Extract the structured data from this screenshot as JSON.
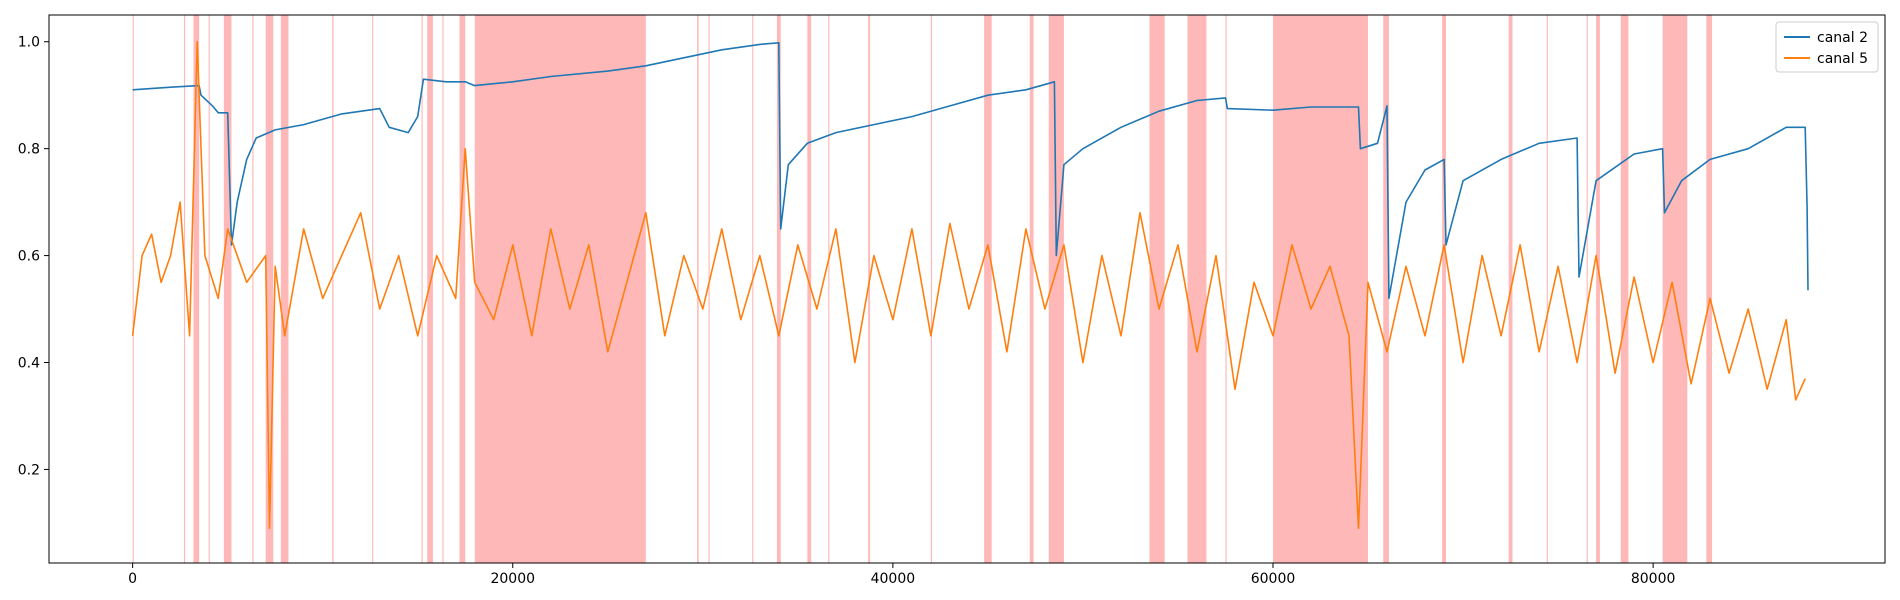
{
  "chart_data": {
    "type": "line",
    "title": "",
    "xlabel": "",
    "ylabel": "",
    "xlim": [
      -4400,
      92200
    ],
    "ylim": [
      0.025,
      1.05
    ],
    "x_ticks": [
      0,
      20000,
      40000,
      60000,
      80000
    ],
    "x_tick_labels": [
      "0",
      "20000",
      "40000",
      "60000",
      "80000"
    ],
    "y_ticks": [
      0.2,
      0.4,
      0.6,
      0.8,
      1.0
    ],
    "y_tick_labels": [
      "0.2",
      "0.4",
      "0.6",
      "0.8",
      "1.0"
    ],
    "grid": false,
    "legend": {
      "placement": "top-right",
      "entries": [
        "canal 2",
        "canal 5"
      ]
    },
    "series": [
      {
        "name": "canal 2",
        "color": "#1f77b4",
        "points": [
          [
            0,
            0.91
          ],
          [
            2000,
            0.915
          ],
          [
            3500,
            0.918
          ],
          [
            3600,
            0.9
          ],
          [
            4200,
            0.88
          ],
          [
            4500,
            0.867
          ],
          [
            5000,
            0.867
          ],
          [
            5200,
            0.62
          ],
          [
            5500,
            0.7
          ],
          [
            6000,
            0.78
          ],
          [
            6500,
            0.82
          ],
          [
            7500,
            0.835
          ],
          [
            9000,
            0.845
          ],
          [
            11000,
            0.865
          ],
          [
            13000,
            0.875
          ],
          [
            13500,
            0.84
          ],
          [
            14500,
            0.83
          ],
          [
            15000,
            0.86
          ],
          [
            15300,
            0.93
          ],
          [
            16500,
            0.925
          ],
          [
            17500,
            0.925
          ],
          [
            18000,
            0.918
          ],
          [
            20000,
            0.925
          ],
          [
            22000,
            0.935
          ],
          [
            25000,
            0.945
          ],
          [
            27000,
            0.955
          ],
          [
            29000,
            0.97
          ],
          [
            31000,
            0.985
          ],
          [
            33000,
            0.995
          ],
          [
            34000,
            0.998
          ],
          [
            34100,
            0.65
          ],
          [
            34500,
            0.77
          ],
          [
            35500,
            0.81
          ],
          [
            37000,
            0.83
          ],
          [
            39000,
            0.845
          ],
          [
            41000,
            0.86
          ],
          [
            43000,
            0.88
          ],
          [
            45000,
            0.9
          ],
          [
            47000,
            0.91
          ],
          [
            48500,
            0.925
          ],
          [
            48600,
            0.6
          ],
          [
            49000,
            0.77
          ],
          [
            50000,
            0.8
          ],
          [
            52000,
            0.84
          ],
          [
            54000,
            0.87
          ],
          [
            56000,
            0.89
          ],
          [
            57500,
            0.895
          ],
          [
            57600,
            0.875
          ],
          [
            60000,
            0.872
          ],
          [
            62000,
            0.878
          ],
          [
            64500,
            0.878
          ],
          [
            64600,
            0.8
          ],
          [
            65500,
            0.81
          ],
          [
            66000,
            0.88
          ],
          [
            66100,
            0.52
          ],
          [
            67000,
            0.7
          ],
          [
            68000,
            0.76
          ],
          [
            69000,
            0.78
          ],
          [
            69100,
            0.62
          ],
          [
            70000,
            0.74
          ],
          [
            72000,
            0.78
          ],
          [
            74000,
            0.81
          ],
          [
            76000,
            0.82
          ],
          [
            76100,
            0.56
          ],
          [
            77000,
            0.74
          ],
          [
            79000,
            0.79
          ],
          [
            80500,
            0.8
          ],
          [
            80600,
            0.68
          ],
          [
            81500,
            0.74
          ],
          [
            83000,
            0.78
          ],
          [
            85000,
            0.8
          ],
          [
            87000,
            0.84
          ],
          [
            88000,
            0.84
          ],
          [
            88100,
            0.69
          ],
          [
            88150,
            0.535
          ]
        ]
      },
      {
        "name": "canal 5",
        "color": "#ff7f0e",
        "points": [
          [
            0,
            0.45
          ],
          [
            500,
            0.6
          ],
          [
            1000,
            0.64
          ],
          [
            1500,
            0.55
          ],
          [
            2000,
            0.6
          ],
          [
            2500,
            0.7
          ],
          [
            3000,
            0.45
          ],
          [
            3400,
            1.0
          ],
          [
            3800,
            0.6
          ],
          [
            4500,
            0.52
          ],
          [
            5000,
            0.65
          ],
          [
            6000,
            0.55
          ],
          [
            7000,
            0.6
          ],
          [
            7200,
            0.09
          ],
          [
            7500,
            0.58
          ],
          [
            8000,
            0.45
          ],
          [
            9000,
            0.65
          ],
          [
            10000,
            0.52
          ],
          [
            11000,
            0.6
          ],
          [
            12000,
            0.68
          ],
          [
            13000,
            0.5
          ],
          [
            14000,
            0.6
          ],
          [
            15000,
            0.45
          ],
          [
            16000,
            0.6
          ],
          [
            17000,
            0.52
          ],
          [
            17500,
            0.8
          ],
          [
            18000,
            0.55
          ],
          [
            19000,
            0.48
          ],
          [
            20000,
            0.62
          ],
          [
            21000,
            0.45
          ],
          [
            22000,
            0.65
          ],
          [
            23000,
            0.5
          ],
          [
            24000,
            0.62
          ],
          [
            25000,
            0.42
          ],
          [
            26000,
            0.55
          ],
          [
            27000,
            0.68
          ],
          [
            28000,
            0.45
          ],
          [
            29000,
            0.6
          ],
          [
            30000,
            0.5
          ],
          [
            31000,
            0.65
          ],
          [
            32000,
            0.48
          ],
          [
            33000,
            0.6
          ],
          [
            34000,
            0.45
          ],
          [
            35000,
            0.62
          ],
          [
            36000,
            0.5
          ],
          [
            37000,
            0.65
          ],
          [
            38000,
            0.4
          ],
          [
            39000,
            0.6
          ],
          [
            40000,
            0.48
          ],
          [
            41000,
            0.65
          ],
          [
            42000,
            0.45
          ],
          [
            43000,
            0.66
          ],
          [
            44000,
            0.5
          ],
          [
            45000,
            0.62
          ],
          [
            46000,
            0.42
          ],
          [
            47000,
            0.65
          ],
          [
            48000,
            0.5
          ],
          [
            49000,
            0.62
          ],
          [
            50000,
            0.4
          ],
          [
            51000,
            0.6
          ],
          [
            52000,
            0.45
          ],
          [
            53000,
            0.68
          ],
          [
            54000,
            0.5
          ],
          [
            55000,
            0.62
          ],
          [
            56000,
            0.42
          ],
          [
            57000,
            0.6
          ],
          [
            58000,
            0.35
          ],
          [
            59000,
            0.55
          ],
          [
            60000,
            0.45
          ],
          [
            61000,
            0.62
          ],
          [
            62000,
            0.5
          ],
          [
            63000,
            0.58
          ],
          [
            64000,
            0.45
          ],
          [
            64500,
            0.09
          ],
          [
            65000,
            0.55
          ],
          [
            66000,
            0.42
          ],
          [
            67000,
            0.58
          ],
          [
            68000,
            0.45
          ],
          [
            69000,
            0.62
          ],
          [
            70000,
            0.4
          ],
          [
            71000,
            0.6
          ],
          [
            72000,
            0.45
          ],
          [
            73000,
            0.62
          ],
          [
            74000,
            0.42
          ],
          [
            75000,
            0.58
          ],
          [
            76000,
            0.4
          ],
          [
            77000,
            0.6
          ],
          [
            78000,
            0.38
          ],
          [
            79000,
            0.56
          ],
          [
            80000,
            0.4
          ],
          [
            81000,
            0.55
          ],
          [
            82000,
            0.36
          ],
          [
            83000,
            0.52
          ],
          [
            84000,
            0.38
          ],
          [
            85000,
            0.5
          ],
          [
            86000,
            0.35
          ],
          [
            87000,
            0.48
          ],
          [
            87500,
            0.33
          ],
          [
            88000,
            0.37
          ]
        ]
      }
    ],
    "shaded_regions_color": "#ff0000",
    "shaded_regions": [
      [
        3200,
        3500
      ],
      [
        4800,
        5200
      ],
      [
        7000,
        7400
      ],
      [
        7800,
        8200
      ],
      [
        15500,
        15800
      ],
      [
        17200,
        17500
      ],
      [
        18000,
        27000
      ],
      [
        33900,
        34100
      ],
      [
        35500,
        35700
      ],
      [
        44800,
        45200
      ],
      [
        47200,
        47400
      ],
      [
        48200,
        49000
      ],
      [
        53500,
        54300
      ],
      [
        55500,
        56500
      ],
      [
        60000,
        65000
      ],
      [
        65800,
        66100
      ],
      [
        68900,
        69100
      ],
      [
        72400,
        72600
      ],
      [
        78300,
        78700
      ],
      [
        80500,
        81800
      ],
      [
        82800,
        83100
      ],
      [
        0,
        60
      ],
      [
        2700,
        2760
      ],
      [
        4000,
        4060
      ],
      [
        6300,
        6360
      ],
      [
        10500,
        10570
      ],
      [
        12600,
        12660
      ],
      [
        15200,
        15260
      ],
      [
        16300,
        16360
      ],
      [
        29700,
        29780
      ],
      [
        30300,
        30360
      ],
      [
        32600,
        32660
      ],
      [
        36600,
        36660
      ],
      [
        38700,
        38800
      ],
      [
        42000,
        42060
      ],
      [
        57500,
        57560
      ],
      [
        74400,
        74460
      ],
      [
        76500,
        76560
      ],
      [
        77000,
        77200
      ]
    ]
  }
}
